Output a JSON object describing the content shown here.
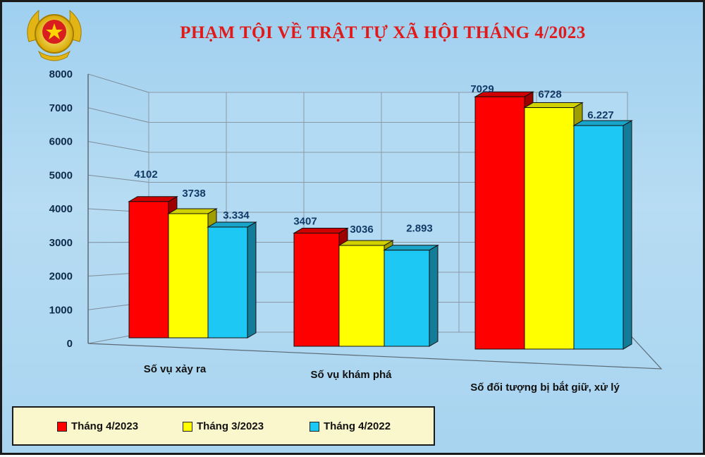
{
  "chart_data": {
    "type": "bar",
    "title": "PHẠM TỘI VỀ TRẬT TỰ XÃ HỘI THÁNG 4/2023",
    "categories": [
      "Số vụ xảy ra",
      "Số vụ khám phá",
      "Số đối tượng bị bắt giữ, xử lý"
    ],
    "series": [
      {
        "name": "Tháng 4/2023",
        "color": "#ff0000",
        "values": [
          4102,
          3407,
          7029
        ],
        "labels": [
          "4102",
          "3407",
          "7029"
        ]
      },
      {
        "name": "Tháng 3/2023",
        "color": "#ffff00",
        "values": [
          3738,
          3036,
          6728
        ],
        "labels": [
          "3738",
          "3036",
          "6728"
        ]
      },
      {
        "name": "Tháng 4/2022",
        "color": "#1ec8f5",
        "values": [
          3334,
          2893,
          6227
        ],
        "labels": [
          "3.334",
          "2.893",
          "6.227"
        ]
      }
    ],
    "ylim": [
      0,
      8000
    ],
    "yticks": [
      "0",
      "1000",
      "2000",
      "3000",
      "4000",
      "5000",
      "6000",
      "7000",
      "8000"
    ],
    "grid": true,
    "legend": "bottom-left"
  },
  "colors": {
    "background": "#a8d4f0",
    "title": "#e01a1a",
    "legend_bg": "#fbf7cc"
  },
  "icons": {
    "logo": "police-emblem-icon"
  }
}
